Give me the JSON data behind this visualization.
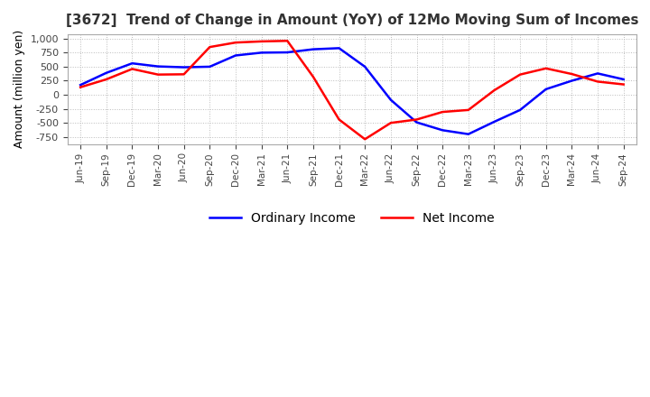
{
  "title": "[3672]  Trend of Change in Amount (YoY) of 12Mo Moving Sum of Incomes",
  "ylabel": "Amount (million yen)",
  "ylim": [
    -875,
    1075
  ],
  "yticks": [
    -750,
    -500,
    -250,
    0,
    250,
    500,
    750,
    1000
  ],
  "background_color": "#ffffff",
  "grid_color": "#bbbbbb",
  "ordinary_income_color": "#0000ff",
  "net_income_color": "#ff0000",
  "x_labels": [
    "Jun-19",
    "Sep-19",
    "Dec-19",
    "Mar-20",
    "Jun-20",
    "Sep-20",
    "Dec-20",
    "Mar-21",
    "Jun-21",
    "Sep-21",
    "Dec-21",
    "Mar-22",
    "Jun-22",
    "Sep-22",
    "Dec-22",
    "Mar-23",
    "Jun-23",
    "Sep-23",
    "Dec-23",
    "Mar-24",
    "Jun-24",
    "Sep-24"
  ],
  "ordinary_income": [
    175,
    390,
    560,
    505,
    490,
    500,
    700,
    750,
    755,
    810,
    830,
    500,
    -90,
    -490,
    -630,
    -700,
    -480,
    -270,
    100,
    250,
    380,
    275
  ],
  "net_income": [
    135,
    275,
    460,
    360,
    365,
    850,
    930,
    950,
    960,
    320,
    -440,
    -790,
    -500,
    -440,
    -305,
    -270,
    80,
    360,
    470,
    370,
    235,
    185
  ]
}
